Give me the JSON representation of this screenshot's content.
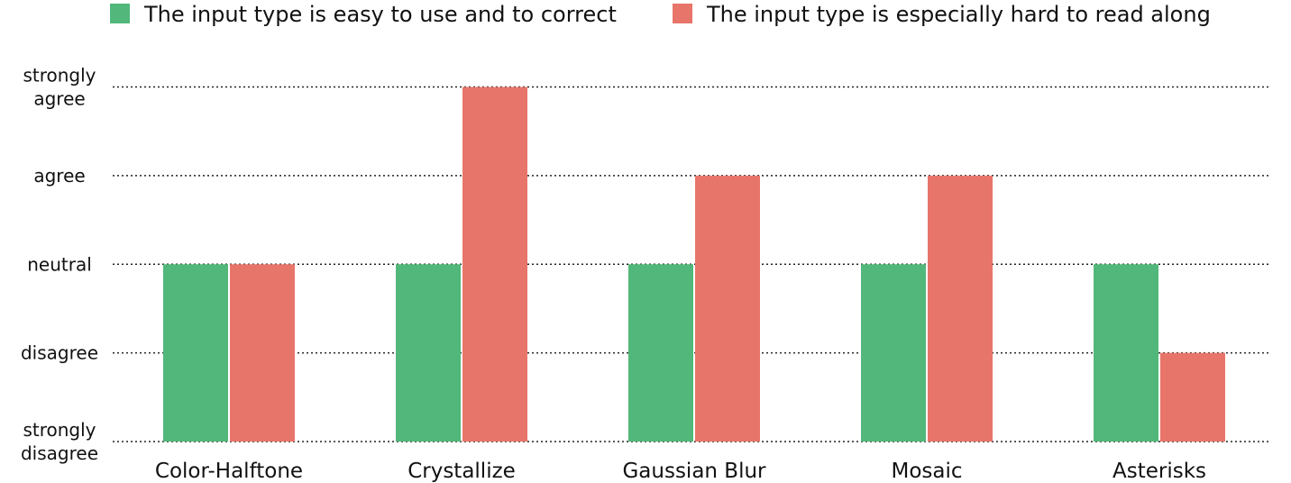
{
  "chart_data": {
    "type": "bar",
    "title": "",
    "xlabel": "",
    "ylabel": "",
    "categories": [
      "Color-Halftone",
      "Crystallize",
      "Gaussian Blur",
      "Mosaic",
      "Asterisks"
    ],
    "series": [
      {
        "name": "The input type is easy to use and to correct",
        "color": "#52b77a",
        "values": [
          3,
          3,
          3,
          3,
          3
        ]
      },
      {
        "name": "The input type is especially hard to read along",
        "color": "#e8756a",
        "values": [
          3,
          5,
          4,
          4,
          2
        ]
      }
    ],
    "ylim": [
      1,
      5
    ],
    "y_tick_values": [
      5,
      4,
      3,
      2,
      1
    ],
    "y_tick_labels": [
      [
        "strongly",
        "agree"
      ],
      [
        "agree"
      ],
      [
        "neutral"
      ],
      [
        "disagree"
      ],
      [
        "strongly",
        "disagree"
      ]
    ],
    "grid": "horizontal dotted",
    "legend_position": "top"
  }
}
